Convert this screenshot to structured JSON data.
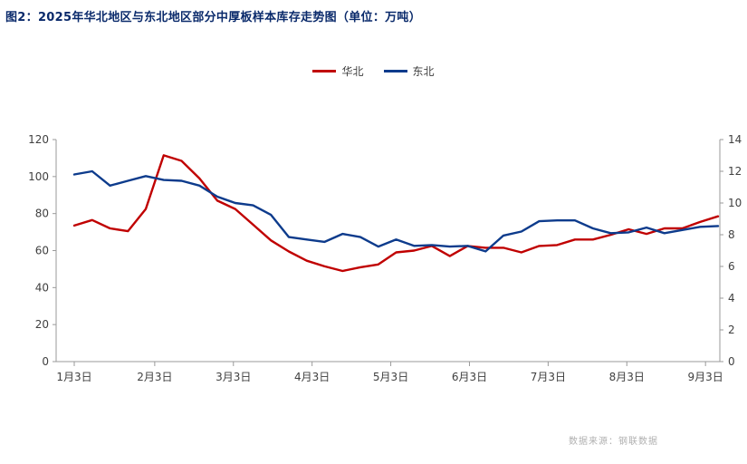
{
  "title": "图2：2025年华北地区与东北地区部分中厚板样本库存走势图（单位：万吨）",
  "source": "数据来源：钢联数据",
  "chart_data": {
    "type": "line",
    "title": "图2：2025年华北地区与东北地区部分中厚板样本库存走势图（单位：万吨）",
    "unit": "万吨",
    "x_tick_labels": [
      "1月3日",
      "2月3日",
      "3月3日",
      "4月3日",
      "5月3日",
      "6月3日",
      "7月3日",
      "8月3日",
      "9月3日"
    ],
    "x_tick_index": [
      0,
      4.5,
      8.9,
      13.3,
      17.7,
      22.1,
      26.5,
      30.9,
      35.3
    ],
    "y_left": {
      "min": 0,
      "max": 120,
      "ticks": [
        0,
        20,
        40,
        60,
        80,
        100,
        120
      ]
    },
    "y_right": {
      "min": 0,
      "max": 14,
      "ticks": [
        0,
        2,
        4,
        6,
        8,
        10,
        12,
        14
      ]
    },
    "series": [
      {
        "name": "华北",
        "color": "#c00000",
        "axis": "left",
        "values": [
          73.5,
          76.5,
          72,
          70.5,
          82.5,
          111.5,
          108.5,
          99,
          87,
          82.5,
          74,
          65.5,
          59.5,
          54.5,
          51.5,
          49,
          51,
          52.5,
          59,
          60,
          62.5,
          57,
          62.5,
          61.5,
          61.5,
          59,
          62.5,
          63,
          66,
          66,
          68.5,
          71.5,
          69,
          72,
          72,
          75.5,
          78.5
        ]
      },
      {
        "name": "东北",
        "color": "#0d3b8c",
        "axis": "right",
        "values": [
          11.8,
          12.0,
          11.1,
          11.4,
          11.7,
          11.45,
          11.4,
          11.1,
          10.4,
          10.0,
          9.85,
          9.25,
          7.85,
          7.7,
          7.55,
          8.05,
          7.85,
          7.25,
          7.7,
          7.3,
          7.35,
          7.25,
          7.3,
          6.95,
          7.95,
          8.2,
          8.85,
          8.9,
          8.9,
          8.4,
          8.1,
          8.15,
          8.45,
          8.1,
          8.3,
          8.5,
          8.55
        ]
      }
    ]
  }
}
